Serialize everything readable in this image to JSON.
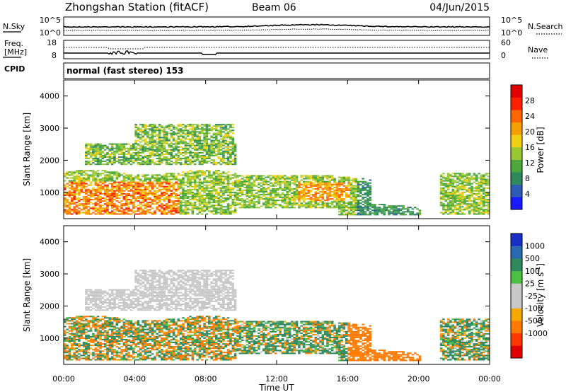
{
  "header": {
    "station": "Zhongshan Station (fitACF)",
    "beam": "Beam 06",
    "date": "04/Jun/2015"
  },
  "sky_panel": {
    "left_label": "N.Sky",
    "left_top_tick": "10^5",
    "left_bottom_tick": "10^0",
    "right_top_tick": "10^5",
    "right_bottom_tick": "10^0",
    "right_label": "N.Search"
  },
  "freq_panel": {
    "left_label_line1": "Freq.",
    "left_label_line2": "[MHz]",
    "left_top_tick": "18",
    "left_bottom_tick": "8",
    "right_top_tick": "60",
    "right_bottom_tick": "0",
    "right_label": "Nave"
  },
  "cpid": {
    "label": "CPID",
    "value": "normal (fast stereo) 153"
  },
  "chart_data": [
    {
      "type": "heatmap",
      "panel": "power",
      "ylabel": "Slant Range [km]",
      "xlabel": "Time UT",
      "x_range_hours": [
        0,
        24
      ],
      "ylim": [
        180,
        4500
      ],
      "y_ticks": [
        "1000",
        "2000",
        "3000",
        "4000"
      ],
      "x_ticks": [
        "00:00",
        "04:00",
        "08:00",
        "12:00",
        "16:00",
        "20:00",
        "00:00"
      ],
      "colorbar": {
        "label": "Power [dB]",
        "ticks": [
          "4",
          "8",
          "12",
          "16",
          "20",
          "24",
          "28"
        ],
        "colors": [
          "#1a1aff",
          "#2e5bb5",
          "#2e8a5e",
          "#4ca83c",
          "#9ac832",
          "#f0d010",
          "#f5a000",
          "#ff6600",
          "#ff2000",
          "#e00000"
        ]
      }
    },
    {
      "type": "heatmap",
      "panel": "velocity",
      "ylabel": "Slant Range [km]",
      "xlabel": "Time UT",
      "x_range_hours": [
        0,
        24
      ],
      "ylim": [
        180,
        4500
      ],
      "y_ticks": [
        "1000",
        "2000",
        "3000",
        "4000"
      ],
      "x_ticks": [
        "00:00",
        "04:00",
        "08:00",
        "12:00",
        "16:00",
        "20:00",
        "00:00"
      ],
      "colorbar": {
        "label_main": "Velocity",
        "label_unit": "[m s",
        "label_exp": "-1",
        "label_close": "]",
        "ticks": [
          "1000",
          "500",
          "100",
          "25",
          "-25",
          "-100",
          "-500",
          "-1000"
        ],
        "colors": [
          "#1830c8",
          "#2a6ab0",
          "#2e8a5e",
          "#4cc040",
          "#c8c8c8",
          "#c8c8c8",
          "#f5a800",
          "#ff7a00",
          "#ff3800",
          "#e00000"
        ]
      }
    }
  ]
}
